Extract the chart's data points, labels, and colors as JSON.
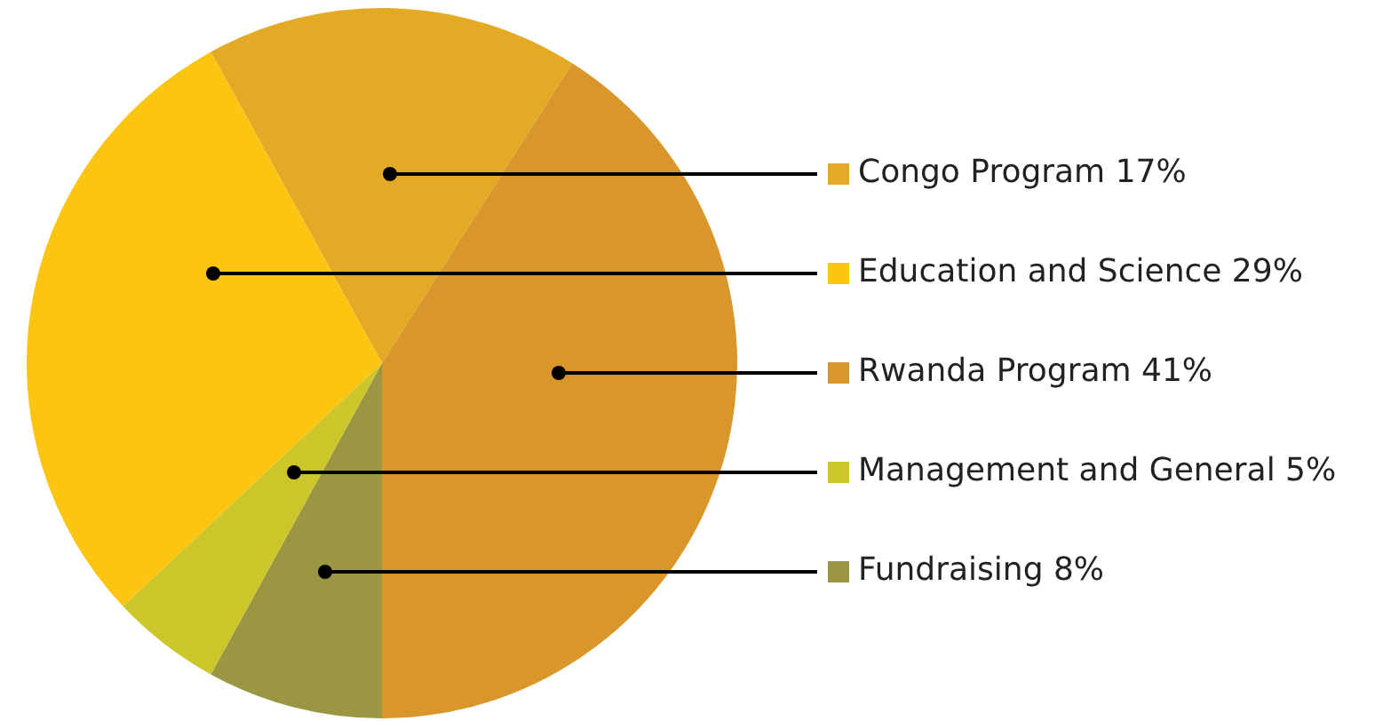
{
  "chart_data": {
    "type": "pie",
    "categories": [
      "Congo Program",
      "Rwanda Program",
      "Fundraising",
      "Management and General",
      "Education and Science"
    ],
    "values": [
      17,
      41,
      8,
      5,
      29
    ],
    "value_labels": [
      "17%",
      "41%",
      "8%",
      "5%",
      "29%"
    ],
    "colors": [
      "#e2aa25",
      "#d9962b",
      "#9b9641",
      "#cdc62b",
      "#fcc512"
    ],
    "legend": "right"
  }
}
